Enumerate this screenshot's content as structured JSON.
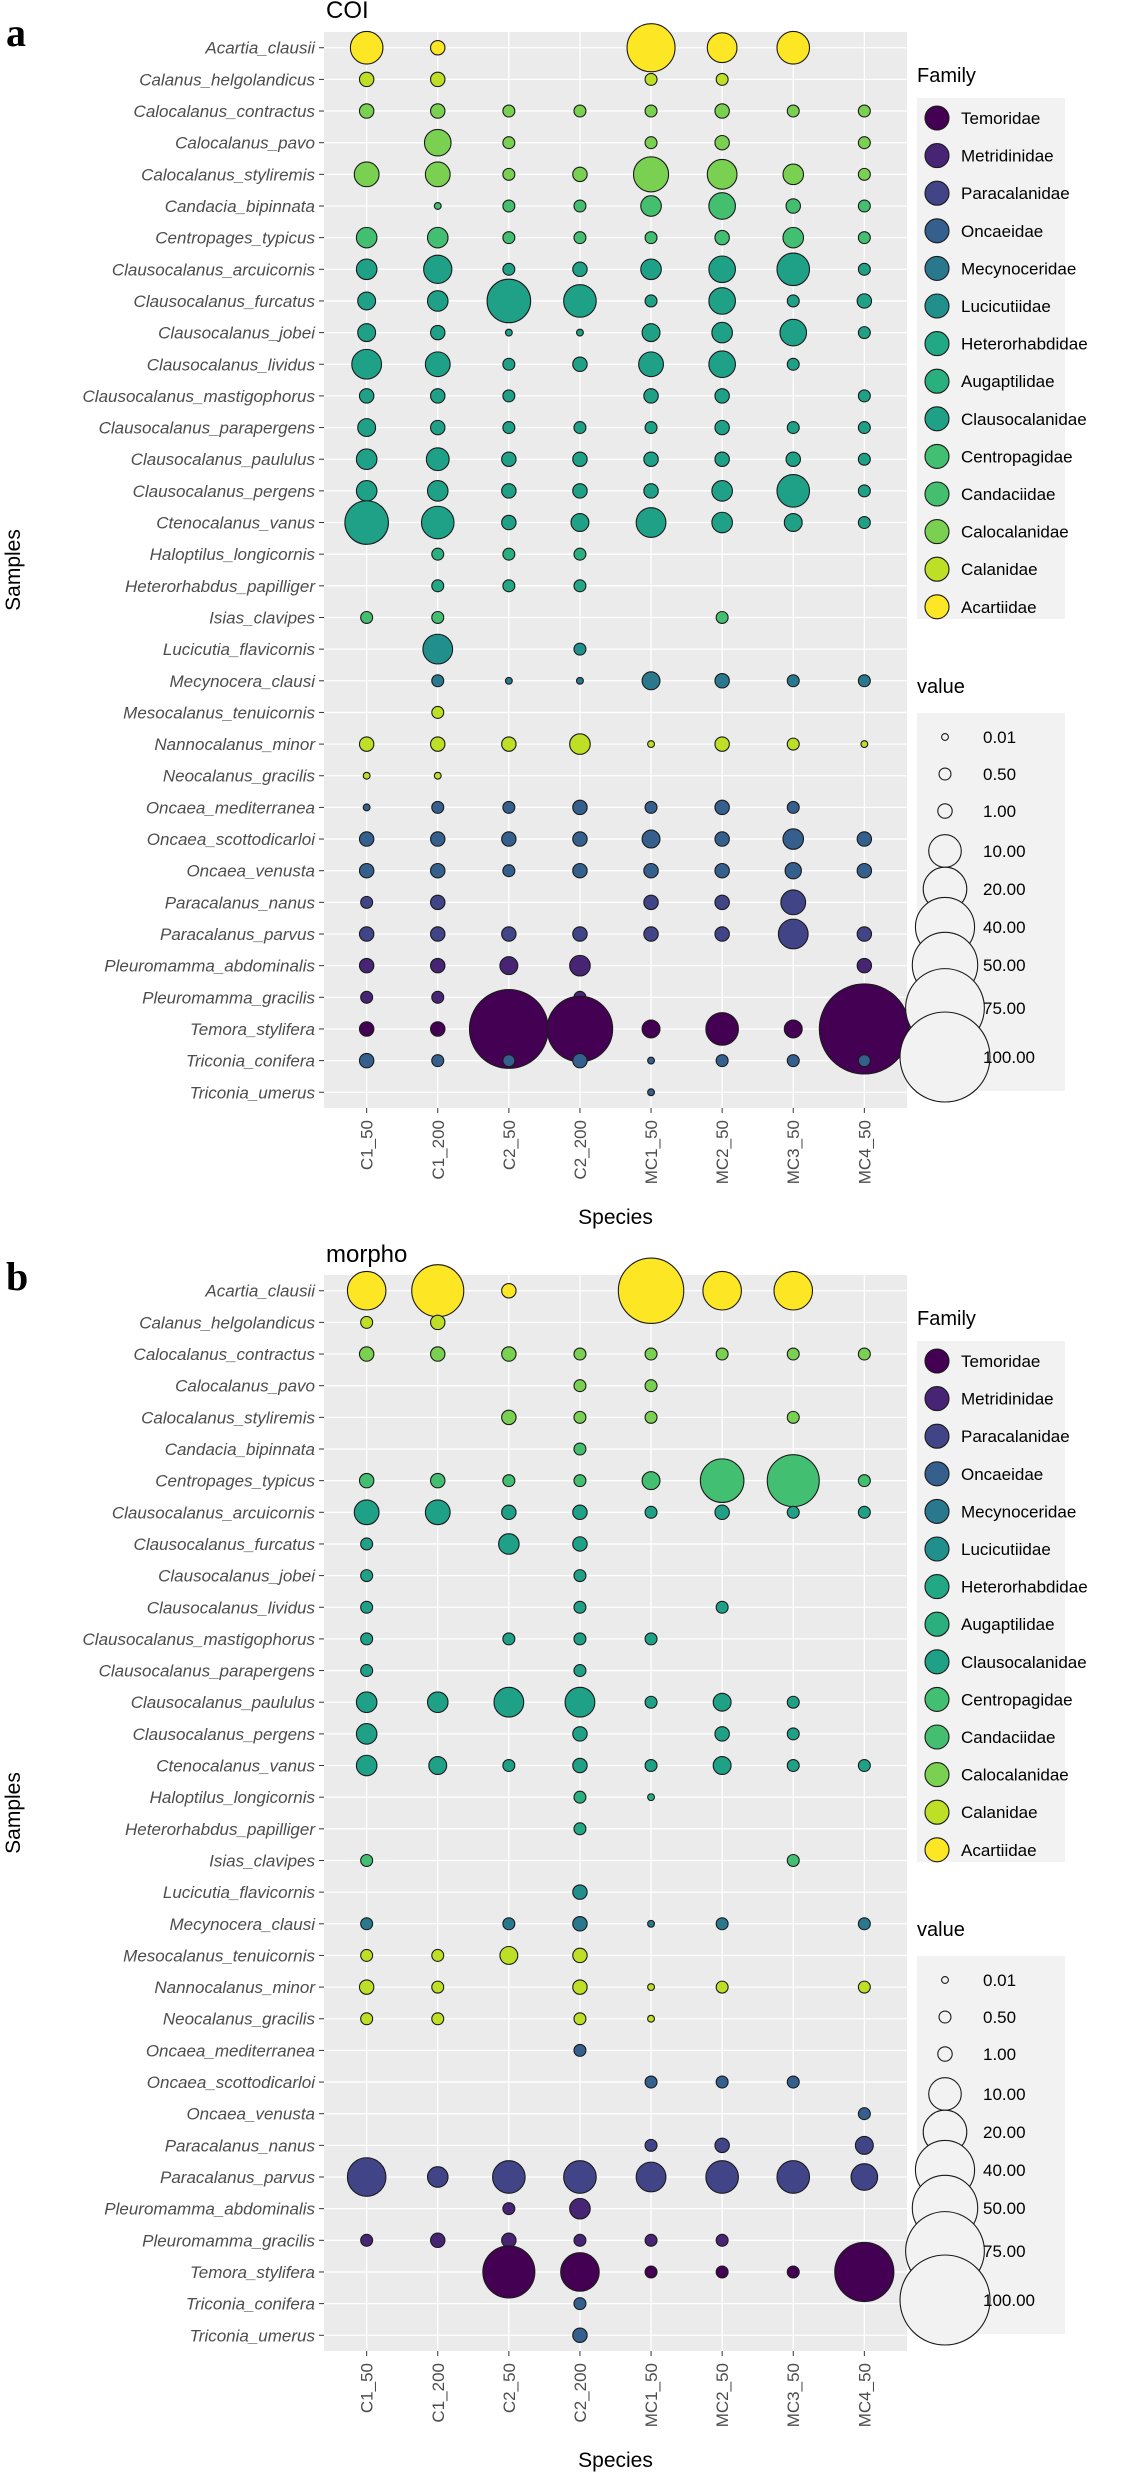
{
  "figure": {
    "size_legend_title": "value",
    "family_legend_title": "Family",
    "families": [
      "Temoridae",
      "Metridinidae",
      "Paracalanidae",
      "Oncaeidae",
      "Mecynoceridae",
      "Lucicutiidae",
      "Heterorhabdidae",
      "Augaptilidae",
      "Clausocalanidae",
      "Centropagidae",
      "Candaciidae",
      "Calocalanidae",
      "Calanidae",
      "Acartiidae"
    ],
    "family_colors": [
      "#440154",
      "#482475",
      "#414487",
      "#355f8d",
      "#2a788e",
      "#21908d",
      "#22a884",
      "#2ab07f",
      "#1fa187",
      "#43bf71",
      "#44bf70",
      "#7ad151",
      "#bddf26",
      "#fde725"
    ],
    "size_breaks": [
      0.01,
      0.5,
      1,
      10,
      20,
      40,
      50,
      75,
      100
    ],
    "size_labels": [
      "0.01",
      "0.50",
      "1.00",
      "10.00",
      "20.00",
      "40.00",
      "50.00",
      "75.00",
      "100.00"
    ]
  },
  "chart_data": [
    {
      "type": "scatter",
      "panel_letter": "a",
      "title": "COI",
      "xlabel": "Species",
      "ylabel": "Samples",
      "x_categories": [
        "C1_50",
        "C1_200",
        "C2_50",
        "C2_200",
        "MC1_50",
        "MC2_50",
        "MC3_50",
        "MC4_50"
      ],
      "y_categories": [
        "Acartia_clausii",
        "Calanus_helgolandicus",
        "Calocalanus_contractus",
        "Calocalanus_pavo",
        "Calocalanus_styliremis",
        "Candacia_bipinnata",
        "Centropages_typicus",
        "Clausocalanus_arcuicornis",
        "Clausocalanus_furcatus",
        "Clausocalanus_jobei",
        "Clausocalanus_lividus",
        "Clausocalanus_mastigophorus",
        "Clausocalanus_parapergens",
        "Clausocalanus_paululus",
        "Clausocalanus_pergens",
        "Ctenocalanus_vanus",
        "Haloptilus_longicornis",
        "Heterorhabdus_papilliger",
        "Isias_clavipes",
        "Lucicutia_flavicornis",
        "Mecynocera_clausi",
        "Mesocalanus_tenuicornis",
        "Nannocalanus_minor",
        "Neocalanus_gracilis",
        "Oncaea_mediterranea",
        "Oncaea_scottodicarloi",
        "Oncaea_venusta",
        "Paracalanus_nanus",
        "Paracalanus_parvus",
        "Pleuromamma_abdominalis",
        "Pleuromamma_gracilis",
        "Temora_stylifera",
        "Triconia_conifera",
        "Triconia_umerus"
      ],
      "y_family": [
        13,
        12,
        11,
        11,
        11,
        10,
        9,
        8,
        8,
        8,
        8,
        8,
        8,
        8,
        8,
        8,
        7,
        6,
        9,
        5,
        4,
        12,
        12,
        12,
        3,
        3,
        3,
        2,
        2,
        1,
        1,
        0,
        3,
        3
      ],
      "values": [
        [
          10,
          1,
          0,
          0,
          25,
          8,
          10,
          0
        ],
        [
          1,
          1,
          0,
          0,
          0.5,
          0.5,
          0,
          0
        ],
        [
          1,
          1,
          0.5,
          0.5,
          0.5,
          1,
          0.5,
          0.5
        ],
        [
          0,
          6,
          0.5,
          0,
          0.5,
          1,
          0,
          0.5
        ],
        [
          5,
          5,
          0.5,
          1,
          12,
          8,
          3,
          0.5
        ],
        [
          0,
          0.01,
          0.5,
          0.5,
          3,
          6,
          1,
          0.5
        ],
        [
          3,
          3,
          0.5,
          0.5,
          0.5,
          1,
          3,
          0.5
        ],
        [
          3,
          7,
          0.5,
          1,
          3,
          6,
          10,
          0.5
        ],
        [
          2,
          3,
          20,
          10,
          0.5,
          6,
          0.5,
          1
        ],
        [
          2,
          1,
          0.01,
          0.01,
          2,
          3,
          6,
          0.5
        ],
        [
          8,
          5,
          0.5,
          1,
          5,
          6,
          0.5,
          0
        ],
        [
          1,
          1,
          0.5,
          0,
          1,
          1,
          0,
          0.5
        ],
        [
          2,
          1,
          0.5,
          0.5,
          0.5,
          1,
          0.5,
          0.5
        ],
        [
          3,
          4,
          1,
          1,
          1,
          1,
          1,
          0.5
        ],
        [
          3,
          3,
          1,
          1,
          1,
          3,
          10,
          0.5
        ],
        [
          20,
          10,
          1,
          2,
          8,
          3,
          2,
          0.5
        ],
        [
          0,
          0.5,
          0.5,
          0.5,
          0,
          0,
          0,
          0
        ],
        [
          0,
          0.5,
          0.5,
          0.5,
          0,
          0,
          0,
          0
        ],
        [
          0.5,
          0.5,
          0,
          0,
          0,
          0.5,
          0,
          0
        ],
        [
          0,
          8,
          0,
          0.5,
          0,
          0,
          0,
          0
        ],
        [
          0,
          0.5,
          0.01,
          0.01,
          2,
          1,
          0.5,
          0.5
        ],
        [
          0,
          0.5,
          0,
          0,
          0,
          0,
          0,
          0
        ],
        [
          1,
          1,
          1,
          3,
          0.01,
          1,
          0.5,
          0.01
        ],
        [
          0.01,
          0.01,
          0,
          0,
          0,
          0,
          0,
          0
        ],
        [
          0.01,
          0.5,
          0.5,
          1,
          0.5,
          1,
          0.5,
          0
        ],
        [
          1,
          1,
          1,
          1,
          2,
          1,
          3,
          1
        ],
        [
          1,
          1,
          0.5,
          1,
          1,
          1,
          1.5,
          1
        ],
        [
          0.5,
          1,
          0,
          0,
          1,
          1,
          5,
          0
        ],
        [
          1,
          1,
          1,
          1,
          1,
          1,
          8,
          1
        ],
        [
          1,
          1,
          2,
          3,
          0,
          0,
          0,
          1
        ],
        [
          0.5,
          0.5,
          0.5,
          0.5,
          0,
          0,
          0,
          0
        ],
        [
          1,
          1,
          75,
          50,
          2,
          10,
          2,
          100
        ],
        [
          1,
          0.5,
          0.5,
          1,
          0.01,
          0.5,
          0.5,
          0.5
        ],
        [
          0,
          0,
          0,
          0,
          0.01,
          0,
          0,
          0
        ]
      ]
    },
    {
      "type": "scatter",
      "panel_letter": "b",
      "title": "morpho",
      "xlabel": "Species",
      "ylabel": "Samples",
      "x_categories": [
        "C1_50",
        "C1_200",
        "C2_50",
        "C2_200",
        "MC1_50",
        "MC2_50",
        "MC3_50",
        "MC4_50"
      ],
      "y_categories": [
        "Acartia_clausii",
        "Calanus_helgolandicus",
        "Calocalanus_contractus",
        "Calocalanus_pavo",
        "Calocalanus_styliremis",
        "Candacia_bipinnata",
        "Centropages_typicus",
        "Clausocalanus_arcuicornis",
        "Clausocalanus_furcatus",
        "Clausocalanus_jobei",
        "Clausocalanus_lividus",
        "Clausocalanus_mastigophorus",
        "Clausocalanus_parapergens",
        "Clausocalanus_paululus",
        "Clausocalanus_pergens",
        "Ctenocalanus_vanus",
        "Haloptilus_longicornis",
        "Heterorhabdus_papilliger",
        "Isias_clavipes",
        "Lucicutia_flavicornis",
        "Mecynocera_clausi",
        "Mesocalanus_tenuicornis",
        "Nannocalanus_minor",
        "Neocalanus_gracilis",
        "Oncaea_mediterranea",
        "Oncaea_scottodicarloi",
        "Oncaea_venusta",
        "Paracalanus_nanus",
        "Paracalanus_parvus",
        "Pleuromamma_abdominalis",
        "Pleuromamma_gracilis",
        "Temora_stylifera",
        "Triconia_conifera",
        "Triconia_umerus"
      ],
      "y_family": [
        13,
        12,
        11,
        11,
        11,
        10,
        9,
        8,
        8,
        8,
        8,
        8,
        8,
        8,
        8,
        8,
        7,
        6,
        9,
        5,
        4,
        12,
        12,
        12,
        3,
        3,
        3,
        2,
        2,
        1,
        1,
        0,
        3,
        3
      ],
      "values": [
        [
          15,
          30,
          1,
          0,
          50,
          15,
          15,
          0
        ],
        [
          0.5,
          1,
          0,
          0,
          0,
          0,
          0,
          0
        ],
        [
          1,
          1,
          1,
          0.5,
          0.5,
          0.5,
          0.5,
          0.5
        ],
        [
          0,
          0,
          0,
          0.5,
          0.5,
          0,
          0,
          0
        ],
        [
          0,
          0,
          1,
          0.5,
          0.5,
          0,
          0.5,
          0
        ],
        [
          0,
          0,
          0,
          0.5,
          0,
          0,
          0,
          0
        ],
        [
          1,
          1,
          0.5,
          0.5,
          2,
          20,
          30,
          0.5
        ],
        [
          5,
          5,
          1,
          1,
          0.5,
          1,
          0.5,
          0.5
        ],
        [
          0.5,
          0,
          3,
          1,
          0,
          0,
          0,
          0
        ],
        [
          0.5,
          0,
          0,
          0.5,
          0,
          0,
          0,
          0
        ],
        [
          0.5,
          0,
          0,
          0.5,
          0,
          0.5,
          0,
          0
        ],
        [
          0.5,
          0,
          0.5,
          0.5,
          0.5,
          0,
          0,
          0
        ],
        [
          0.5,
          0,
          0,
          0.5,
          0,
          0,
          0,
          0
        ],
        [
          3,
          3,
          8,
          8,
          0.5,
          2,
          0.5,
          0
        ],
        [
          3,
          0,
          0,
          1,
          0,
          1,
          0.5,
          0
        ],
        [
          3,
          2,
          0.5,
          1,
          0.5,
          2,
          0.5,
          0.5
        ],
        [
          0,
          0,
          0,
          0.5,
          0.01,
          0,
          0,
          0
        ],
        [
          0,
          0,
          0,
          0.5,
          0,
          0,
          0,
          0
        ],
        [
          0.5,
          0,
          0,
          0,
          0,
          0,
          0.5,
          0
        ],
        [
          0,
          0,
          0,
          1,
          0,
          0,
          0,
          0
        ],
        [
          0.5,
          0,
          0.5,
          1,
          0.01,
          0.5,
          0,
          0.5
        ],
        [
          0.5,
          0.5,
          2,
          1,
          0,
          0,
          0,
          0
        ],
        [
          1,
          0.5,
          0,
          1,
          0.01,
          0.5,
          0,
          0.5
        ],
        [
          0.5,
          0.5,
          0,
          0.5,
          0.01,
          0,
          0,
          0
        ],
        [
          0,
          0,
          0,
          0.5,
          0,
          0,
          0,
          0
        ],
        [
          0,
          0,
          0,
          0,
          0.5,
          0.5,
          0.5,
          0
        ],
        [
          0,
          0,
          0,
          0,
          0,
          0,
          0,
          0.5
        ],
        [
          0,
          0,
          0,
          0,
          0.5,
          1,
          0,
          2
        ],
        [
          15,
          3,
          10,
          10,
          8,
          10,
          10,
          6
        ],
        [
          0,
          0,
          0.5,
          3,
          0,
          0,
          0,
          0
        ],
        [
          0.5,
          1,
          1,
          0.5,
          0.5,
          0.5,
          0,
          0
        ],
        [
          0,
          0,
          30,
          15,
          0.5,
          0.5,
          0.5,
          40
        ],
        [
          0,
          0,
          0,
          0.5,
          0,
          0,
          0,
          0
        ],
        [
          0,
          0,
          0,
          1,
          0,
          0,
          0,
          0
        ]
      ]
    }
  ]
}
